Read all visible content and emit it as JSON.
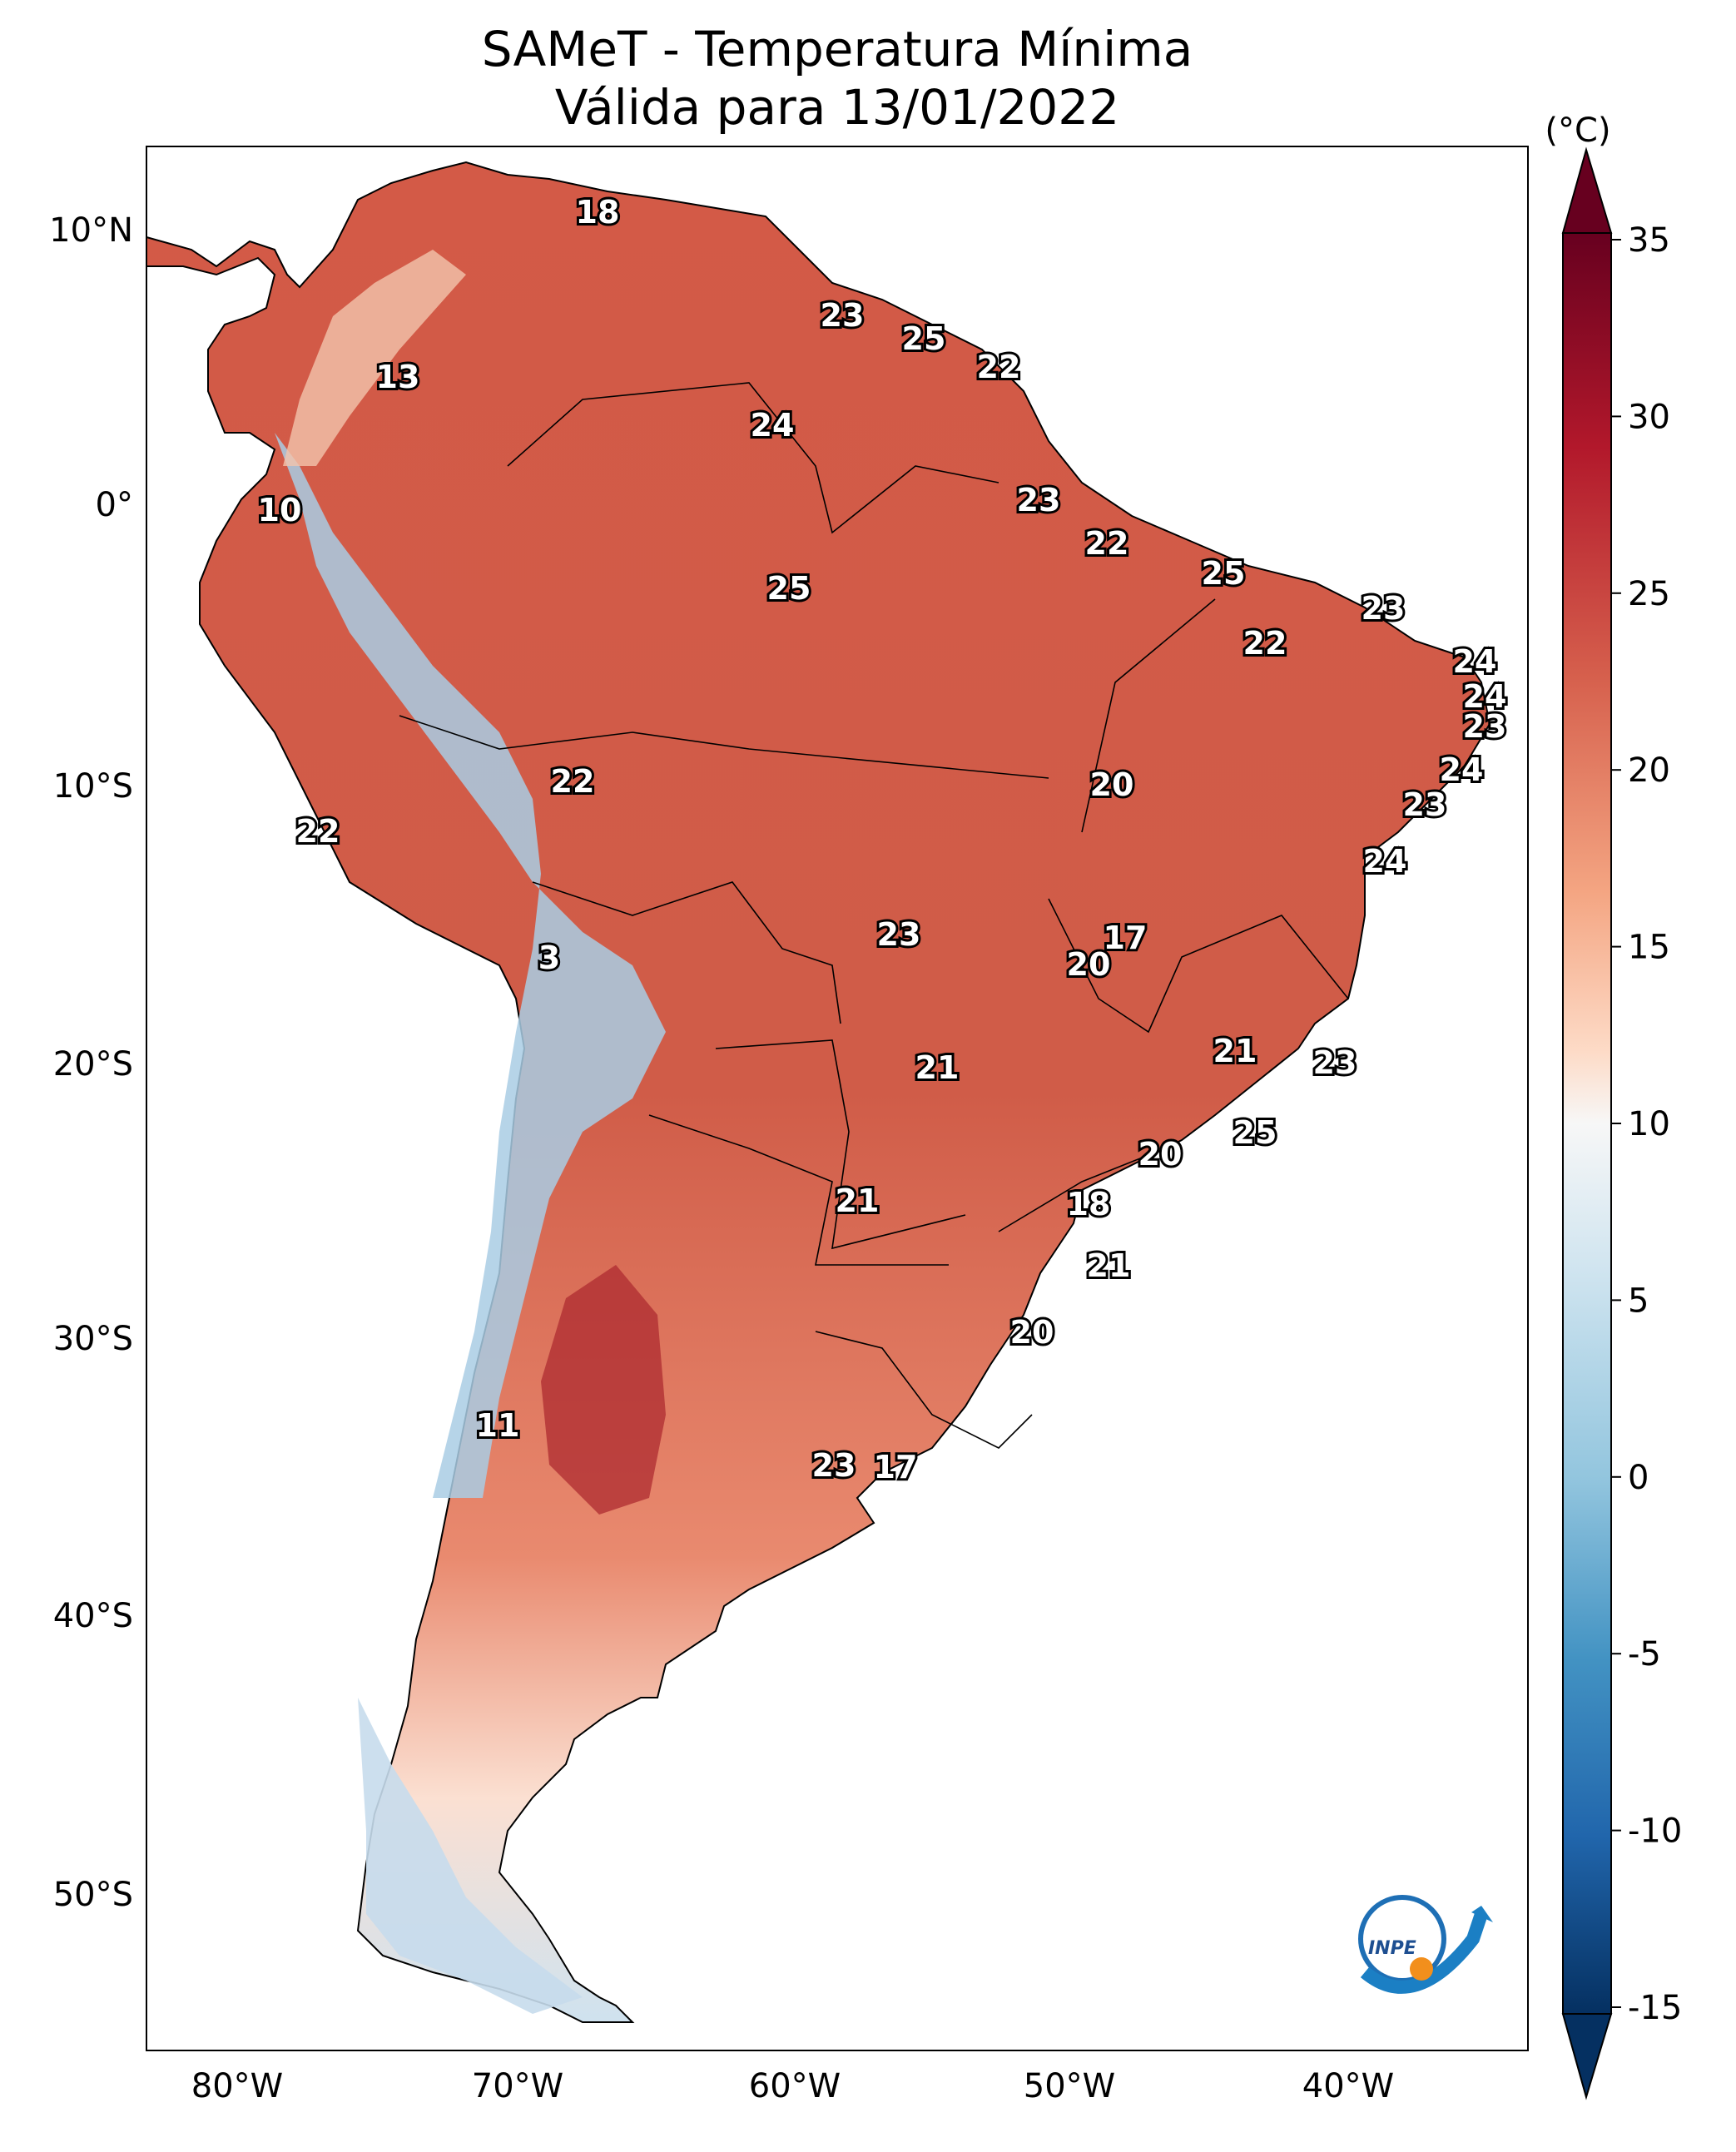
{
  "title_line1": "SAMeT - Temperatura Mínima",
  "title_line2": "Válida para 13/01/2022",
  "colorbar": {
    "unit": "(°C)",
    "ticks": [
      "35",
      "30",
      "25",
      "20",
      "15",
      "10",
      "5",
      "0",
      "-5",
      "-10",
      "-15"
    ]
  },
  "axes": {
    "lat_labels": [
      "10°N",
      "0°",
      "10°S",
      "20°S",
      "30°S",
      "40°S",
      "50°S"
    ],
    "lon_labels": [
      "80°W",
      "70°W",
      "60°W",
      "50°W",
      "40°W"
    ]
  },
  "station_values": [
    "18",
    "23",
    "25",
    "22",
    "13",
    "24",
    "10",
    "23",
    "22",
    "25",
    "25",
    "23",
    "22",
    "24",
    "24",
    "23",
    "24",
    "22",
    "20",
    "22",
    "23",
    "24",
    "3",
    "17",
    "23",
    "20",
    "21",
    "21",
    "23",
    "25",
    "20",
    "21",
    "18",
    "21",
    "20",
    "11",
    "23",
    "17"
  ],
  "logo_text": "INPE",
  "colors": {
    "warm": "#c8423a",
    "hot": "#a51c2d",
    "cold": "#3f84bd",
    "neutral": "#f5f0ee"
  }
}
